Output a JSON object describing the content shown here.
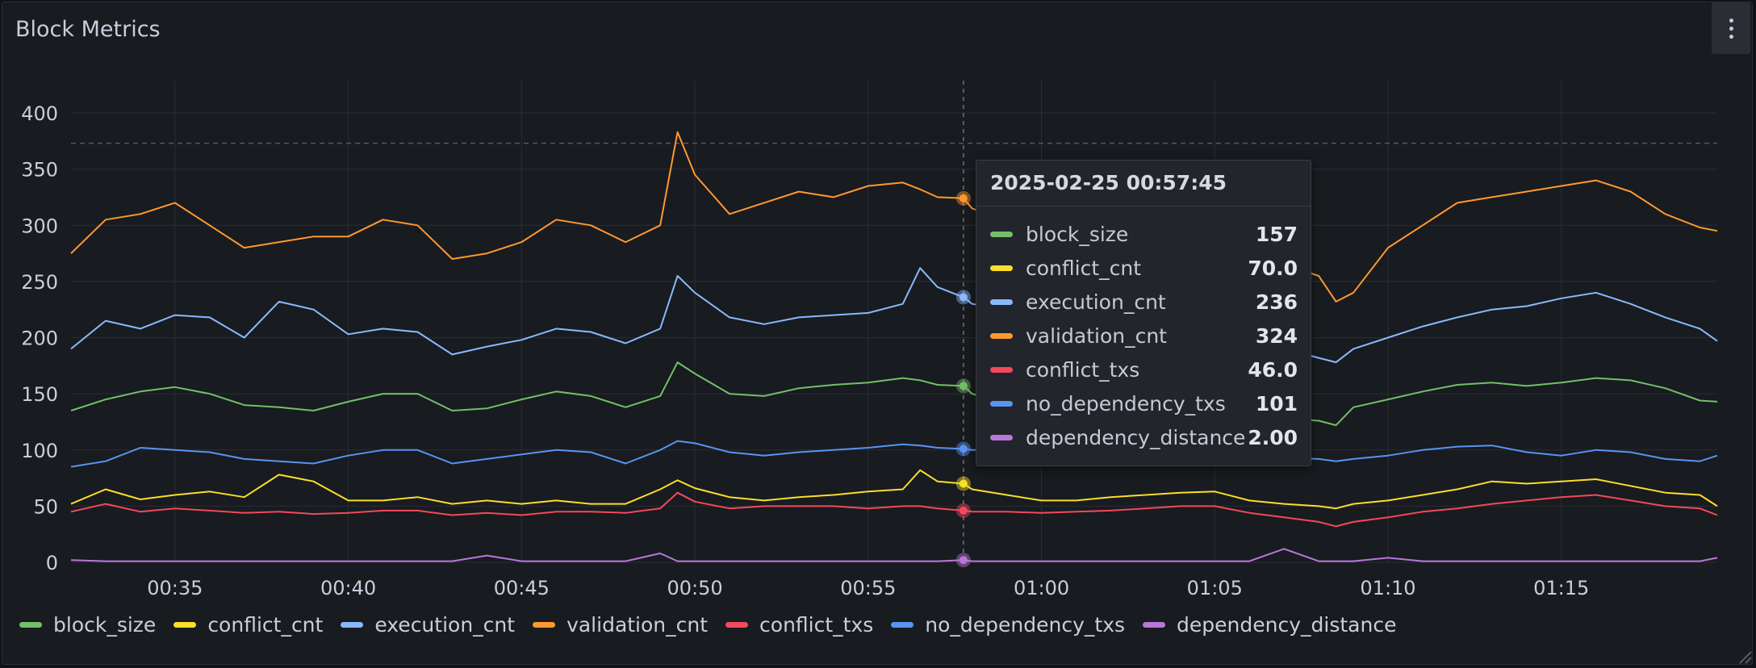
{
  "panel": {
    "title": "Block Metrics"
  },
  "colors": {
    "block_size": "#73bf69",
    "conflict_cnt": "#fade2a",
    "execution_cnt": "#8ab8ff",
    "validation_cnt": "#ff9830",
    "conflict_txs": "#f2495c",
    "no_dependency_txs": "#5794f2",
    "dependency_distance": "#b877d9"
  },
  "legend": [
    {
      "key": "block_size",
      "label": "block_size"
    },
    {
      "key": "conflict_cnt",
      "label": "conflict_cnt"
    },
    {
      "key": "execution_cnt",
      "label": "execution_cnt"
    },
    {
      "key": "validation_cnt",
      "label": "validation_cnt"
    },
    {
      "key": "conflict_txs",
      "label": "conflict_txs"
    },
    {
      "key": "no_dependency_txs",
      "label": "no_dependency_txs"
    },
    {
      "key": "dependency_distance",
      "label": "dependency_distance"
    }
  ],
  "tooltip": {
    "title": "2025-02-25 00:57:45",
    "rows": [
      {
        "key": "block_size",
        "label": "block_size",
        "value": "157"
      },
      {
        "key": "conflict_cnt",
        "label": "conflict_cnt",
        "value": "70.0"
      },
      {
        "key": "execution_cnt",
        "label": "execution_cnt",
        "value": "236"
      },
      {
        "key": "validation_cnt",
        "label": "validation_cnt",
        "value": "324"
      },
      {
        "key": "conflict_txs",
        "label": "conflict_txs",
        "value": "46.0"
      },
      {
        "key": "no_dependency_txs",
        "label": "no_dependency_txs",
        "value": "101"
      },
      {
        "key": "dependency_distance",
        "label": "dependency_distance",
        "value": "2.00"
      }
    ]
  },
  "chart_data": {
    "type": "line",
    "title": "Block Metrics",
    "xlabel": "",
    "ylabel": "",
    "ylim": [
      0,
      400
    ],
    "yticks": [
      0,
      50,
      100,
      150,
      200,
      250,
      300,
      350,
      400
    ],
    "xlim": [
      "00:32:00",
      "01:19:30"
    ],
    "xticks": [
      "00:35",
      "00:40",
      "00:45",
      "00:50",
      "00:55",
      "01:00",
      "01:05",
      "01:10",
      "01:15"
    ],
    "grid": true,
    "legend_position": "bottom",
    "threshold": 373,
    "cursor_time": "00:57:45",
    "x": [
      "00:32",
      "00:33",
      "00:34",
      "00:35",
      "00:36",
      "00:37",
      "00:38",
      "00:39",
      "00:40",
      "00:41",
      "00:42",
      "00:43",
      "00:44",
      "00:45",
      "00:46",
      "00:47",
      "00:48",
      "00:49",
      "00:49:30",
      "00:50",
      "00:51",
      "00:52",
      "00:53",
      "00:54",
      "00:55",
      "00:56",
      "00:56:30",
      "00:57",
      "00:57:45",
      "00:58",
      "00:59",
      "01:00",
      "01:01",
      "01:02",
      "01:03",
      "01:04",
      "01:05",
      "01:06",
      "01:07",
      "01:08",
      "01:08:30",
      "01:09",
      "01:10",
      "01:11",
      "01:12",
      "01:13",
      "01:14",
      "01:15",
      "01:16",
      "01:17",
      "01:18",
      "01:19",
      "01:19:30"
    ],
    "series": [
      {
        "name": "block_size",
        "key": "block_size",
        "values": [
          135,
          145,
          152,
          156,
          150,
          140,
          138,
          135,
          143,
          150,
          150,
          135,
          137,
          145,
          152,
          148,
          138,
          148,
          178,
          168,
          150,
          148,
          155,
          158,
          160,
          164,
          162,
          158,
          157,
          150,
          140,
          132,
          130,
          130,
          135,
          140,
          145,
          138,
          128,
          126,
          122,
          138,
          145,
          152,
          158,
          160,
          157,
          160,
          164,
          162,
          155,
          144,
          143
        ]
      },
      {
        "name": "conflict_cnt",
        "key": "conflict_cnt",
        "values": [
          52,
          65,
          56,
          60,
          63,
          58,
          78,
          72,
          55,
          55,
          58,
          52,
          55,
          52,
          55,
          52,
          52,
          65,
          73,
          66,
          58,
          55,
          58,
          60,
          63,
          65,
          82,
          72,
          70,
          65,
          60,
          55,
          55,
          58,
          60,
          62,
          63,
          55,
          52,
          50,
          48,
          52,
          55,
          60,
          65,
          72,
          70,
          72,
          74,
          68,
          62,
          60,
          50
        ]
      },
      {
        "name": "execution_cnt",
        "key": "execution_cnt",
        "values": [
          190,
          215,
          208,
          220,
          218,
          200,
          232,
          225,
          203,
          208,
          205,
          185,
          192,
          198,
          208,
          205,
          195,
          208,
          255,
          240,
          218,
          212,
          218,
          220,
          222,
          230,
          262,
          245,
          236,
          230,
          225,
          220,
          215,
          210,
          205,
          200,
          205,
          210,
          190,
          182,
          178,
          190,
          200,
          210,
          218,
          225,
          228,
          235,
          240,
          230,
          218,
          208,
          197
        ]
      },
      {
        "name": "validation_cnt",
        "key": "validation_cnt",
        "values": [
          275,
          305,
          310,
          320,
          300,
          280,
          285,
          290,
          290,
          305,
          300,
          270,
          275,
          285,
          305,
          300,
          285,
          300,
          383,
          345,
          310,
          320,
          330,
          325,
          335,
          338,
          332,
          325,
          324,
          315,
          305,
          300,
          295,
          290,
          285,
          280,
          285,
          290,
          265,
          255,
          232,
          240,
          280,
          300,
          320,
          325,
          330,
          335,
          340,
          330,
          310,
          298,
          295
        ]
      },
      {
        "name": "conflict_txs",
        "key": "conflict_txs",
        "values": [
          45,
          52,
          45,
          48,
          46,
          44,
          45,
          43,
          44,
          46,
          46,
          42,
          44,
          42,
          45,
          45,
          44,
          48,
          62,
          54,
          48,
          50,
          50,
          50,
          48,
          50,
          50,
          48,
          46,
          45,
          45,
          44,
          45,
          46,
          48,
          50,
          50,
          44,
          40,
          36,
          32,
          36,
          40,
          45,
          48,
          52,
          55,
          58,
          60,
          55,
          50,
          48,
          42
        ]
      },
      {
        "name": "no_dependency_txs",
        "key": "no_dependency_txs",
        "values": [
          85,
          90,
          102,
          100,
          98,
          92,
          90,
          88,
          95,
          100,
          100,
          88,
          92,
          96,
          100,
          98,
          88,
          100,
          108,
          106,
          98,
          95,
          98,
          100,
          102,
          105,
          104,
          102,
          101,
          100,
          100,
          98,
          96,
          95,
          95,
          95,
          95,
          95,
          93,
          92,
          90,
          92,
          95,
          100,
          103,
          104,
          98,
          95,
          100,
          98,
          92,
          90,
          95
        ]
      },
      {
        "name": "dependency_distance",
        "key": "dependency_distance",
        "values": [
          2,
          1,
          1,
          1,
          1,
          1,
          1,
          1,
          1,
          1,
          1,
          1,
          6,
          1,
          1,
          1,
          1,
          8,
          1,
          1,
          1,
          1,
          1,
          1,
          1,
          1,
          1,
          1,
          2,
          1,
          1,
          1,
          1,
          1,
          1,
          1,
          1,
          1,
          12,
          1,
          1,
          1,
          4,
          1,
          1,
          1,
          1,
          1,
          1,
          1,
          1,
          1,
          4
        ]
      }
    ]
  }
}
